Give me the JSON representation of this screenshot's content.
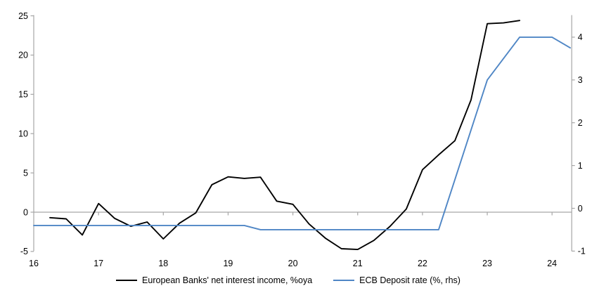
{
  "chart_data": {
    "type": "line",
    "title": "",
    "x_axis": {
      "tick_labels": [
        "16",
        "17",
        "18",
        "19",
        "20",
        "21",
        "22",
        "23",
        "24"
      ],
      "range": [
        16,
        24.3
      ]
    },
    "y_axis_left": {
      "tick_values": [
        25,
        20,
        15,
        10,
        5,
        0,
        -5
      ],
      "range": [
        -5,
        25
      ]
    },
    "y_axis_right": {
      "tick_values": [
        4,
        3,
        2,
        1,
        0,
        -1
      ],
      "range": [
        -1,
        4.5
      ]
    },
    "zero_line": true,
    "grid": "zero-line-only",
    "legend_position": "bottom",
    "series": [
      {
        "name": "European Banks' net interest income, %oya",
        "axis": "left",
        "color": "#000000",
        "points": [
          [
            16.25,
            -0.7
          ],
          [
            16.5,
            -0.85
          ],
          [
            16.75,
            -2.9
          ],
          [
            17.0,
            1.1
          ],
          [
            17.25,
            -0.8
          ],
          [
            17.5,
            -1.8
          ],
          [
            17.75,
            -1.25
          ],
          [
            18.0,
            -3.4
          ],
          [
            18.25,
            -1.4
          ],
          [
            18.5,
            -0.1
          ],
          [
            18.75,
            3.5
          ],
          [
            19.0,
            4.5
          ],
          [
            19.25,
            4.3
          ],
          [
            19.5,
            4.45
          ],
          [
            19.75,
            1.4
          ],
          [
            20.0,
            1.0
          ],
          [
            20.25,
            -1.5
          ],
          [
            20.5,
            -3.3
          ],
          [
            20.75,
            -4.65
          ],
          [
            21.0,
            -4.75
          ],
          [
            21.25,
            -3.6
          ],
          [
            21.5,
            -1.8
          ],
          [
            21.75,
            0.4
          ],
          [
            22.0,
            5.4
          ],
          [
            22.25,
            7.3
          ],
          [
            22.5,
            9.1
          ],
          [
            22.75,
            14.3
          ],
          [
            23.0,
            24.0
          ],
          [
            23.25,
            24.1
          ],
          [
            23.5,
            24.4
          ]
        ]
      },
      {
        "name": "ECB Deposit rate (%, rhs)",
        "axis": "right",
        "color": "#4f86c5",
        "points": [
          [
            16.0,
            -0.4
          ],
          [
            19.25,
            -0.4
          ],
          [
            19.5,
            -0.5
          ],
          [
            22.25,
            -0.5
          ],
          [
            23.0,
            3.0
          ],
          [
            23.5,
            4.0
          ],
          [
            24.0,
            4.0
          ],
          [
            24.28,
            3.75
          ]
        ]
      }
    ]
  },
  "colors": {
    "axis": "#a6a6a6",
    "zero_line": "#a6a6a6",
    "text": "#000000",
    "background": "#ffffff",
    "series_nii": "#000000",
    "series_ecb": "#4f86c5"
  }
}
